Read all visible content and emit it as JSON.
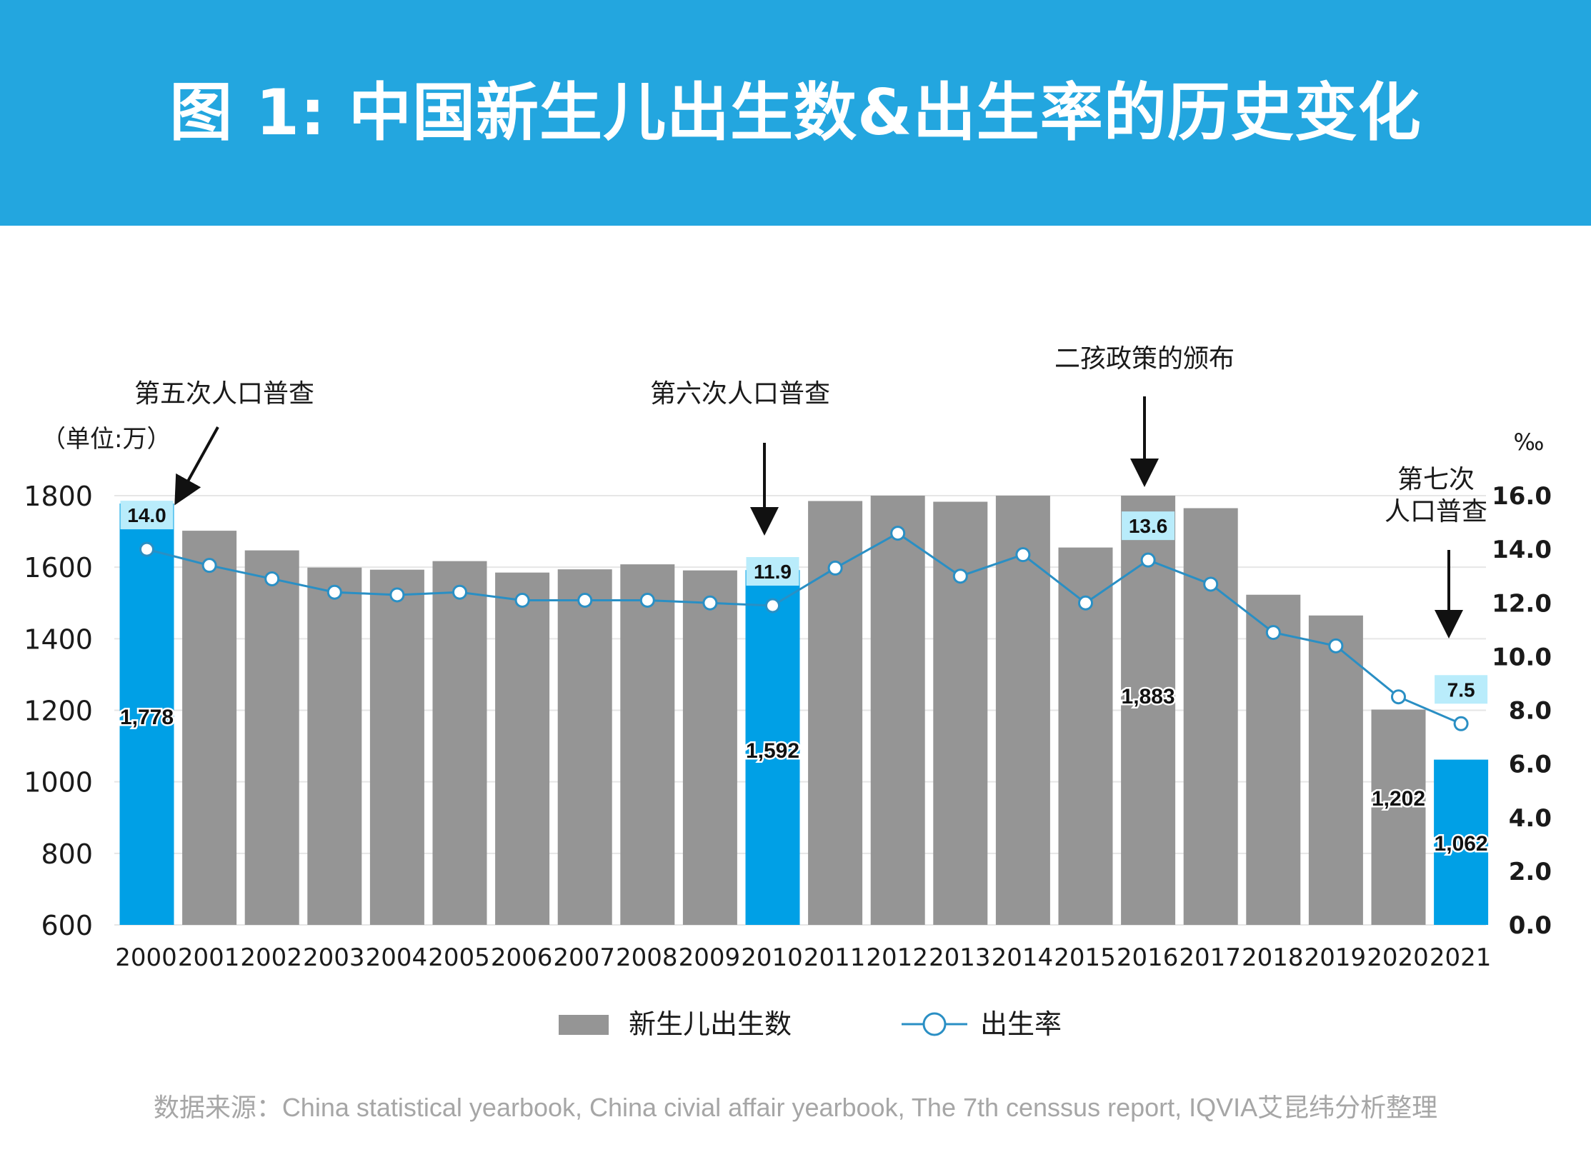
{
  "title": "图 1: 中国新生儿出生数&出生率的历史变化",
  "colors": {
    "banner": "#23a6df",
    "bar_gray": "#959595",
    "bar_highlight": "#00a0e6",
    "line": "#2a8fc4",
    "label_box": "#b9ecfb"
  },
  "chart_data": {
    "type": "bar",
    "categories": [
      "2000",
      "2001",
      "2002",
      "2003",
      "2004",
      "2005",
      "2006",
      "2007",
      "2008",
      "2009",
      "2010",
      "2011",
      "2012",
      "2013",
      "2014",
      "2015",
      "2016",
      "2017",
      "2018",
      "2019",
      "2020",
      "2021"
    ],
    "series": [
      {
        "name": "新生儿出生数",
        "type": "bar",
        "axis": "left",
        "values": [
          1778,
          1702,
          1647,
          1599,
          1593,
          1617,
          1585,
          1594,
          1608,
          1591,
          1592,
          1785,
          1840,
          1783,
          1827,
          1655,
          1883,
          1765,
          1523,
          1465,
          1202,
          1062
        ],
        "highlight": [
          "2000",
          "2010",
          "2021"
        ],
        "data_labels": {
          "2000": "1,778",
          "2010": "1,592",
          "2016": "1,883",
          "2020": "1,202",
          "2021": "1,062"
        }
      },
      {
        "name": "出生率",
        "type": "line",
        "axis": "right",
        "values": [
          14.0,
          13.4,
          12.9,
          12.4,
          12.3,
          12.4,
          12.1,
          12.1,
          12.1,
          12.0,
          11.9,
          13.3,
          14.6,
          13.0,
          13.8,
          12.0,
          13.6,
          12.7,
          10.9,
          10.4,
          8.5,
          7.5
        ],
        "data_labels": {
          "2000": "14.0",
          "2010": "11.9",
          "2016": "13.6",
          "2021": "7.5"
        }
      }
    ],
    "left_axis": {
      "label": "（单位:万）",
      "min": 600,
      "max": 1800,
      "ticks": [
        "600",
        "800",
        "1000",
        "1200",
        "1400",
        "1600",
        "1800"
      ]
    },
    "right_axis": {
      "label": "‰",
      "min": 0.0,
      "max": 16.0,
      "ticks": [
        "0.0",
        "2.0",
        "4.0",
        "6.0",
        "8.0",
        "10.0",
        "12.0",
        "14.0",
        "16.0"
      ]
    },
    "annotations": [
      {
        "text": "第五次人口普查",
        "year": "2000"
      },
      {
        "text": "第六次人口普查",
        "year": "2010"
      },
      {
        "text": "二孩政策的颁布",
        "year": "2016"
      },
      {
        "text": "第七次\n人口普查",
        "year": "2021"
      }
    ],
    "legend": {
      "position": "bottom",
      "items": [
        "新生儿出生数",
        "出生率"
      ]
    },
    "grid": true
  },
  "source": "数据来源：China statistical yearbook, China civial affair yearbook, The 7th censsus report, IQVIA艾昆纬分析整理"
}
